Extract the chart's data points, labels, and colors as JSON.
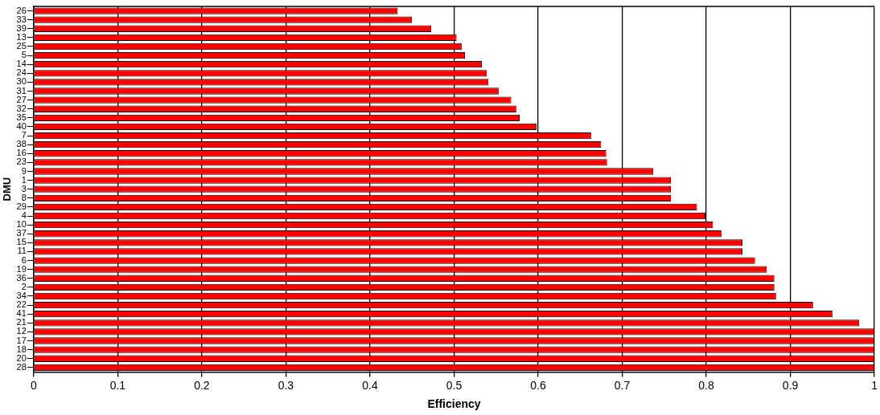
{
  "chart_data": {
    "type": "bar",
    "orientation": "horizontal",
    "xlabel": "Efficiency",
    "ylabel": "DMU",
    "categories": [
      "26",
      "33",
      "39",
      "13",
      "25",
      "5",
      "14",
      "24",
      "30",
      "31",
      "27",
      "32",
      "35",
      "40",
      "7",
      "38",
      "16",
      "23",
      "9",
      "1",
      "3",
      "8",
      "29",
      "4",
      "10",
      "37",
      "15",
      "11",
      "6",
      "19",
      "36",
      "2",
      "34",
      "22",
      "41",
      "21",
      "12",
      "17",
      "18",
      "20",
      "28"
    ],
    "values": [
      0.433,
      0.45,
      0.473,
      0.503,
      0.509,
      0.513,
      0.533,
      0.539,
      0.541,
      0.553,
      0.568,
      0.574,
      0.578,
      0.598,
      0.663,
      0.675,
      0.681,
      0.682,
      0.737,
      0.758,
      0.758,
      0.758,
      0.789,
      0.799,
      0.808,
      0.818,
      0.843,
      0.843,
      0.858,
      0.872,
      0.881,
      0.881,
      0.883,
      0.927,
      0.95,
      0.982,
      1,
      1,
      1,
      1,
      1
    ],
    "color": "#ff0000",
    "xlim": [
      0,
      1
    ],
    "xticks": [
      0,
      0.1,
      0.2,
      0.3,
      0.4,
      0.5,
      0.6,
      0.7,
      0.8,
      0.9,
      1
    ],
    "grid": "x",
    "legend": false
  }
}
